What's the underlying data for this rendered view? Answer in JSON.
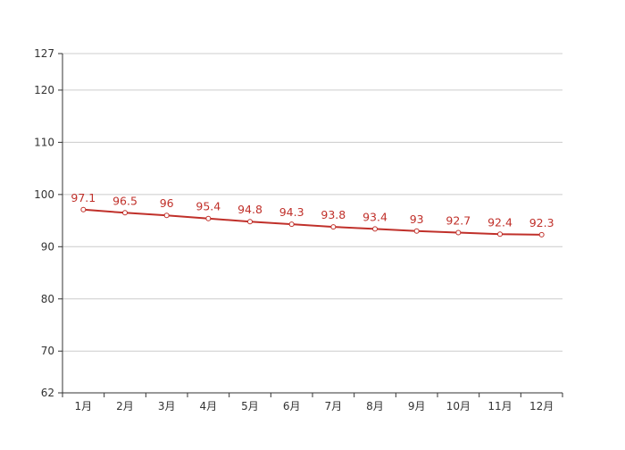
{
  "chart_data": {
    "type": "line",
    "title": "",
    "xlabel": "",
    "ylabel": "",
    "categories": [
      "1月",
      "2月",
      "3月",
      "4月",
      "5月",
      "6月",
      "7月",
      "8月",
      "9月",
      "10月",
      "11月",
      "12月"
    ],
    "yticks": [
      62,
      70,
      80,
      90,
      100,
      110,
      120,
      127
    ],
    "ylim": [
      62,
      127
    ],
    "grid": true,
    "legend": "none",
    "series": [
      {
        "values": [
          97.1,
          96.5,
          96,
          95.4,
          94.8,
          94.3,
          93.8,
          93.4,
          93,
          92.7,
          92.4,
          92.3
        ],
        "color": "#c0302a"
      }
    ]
  }
}
